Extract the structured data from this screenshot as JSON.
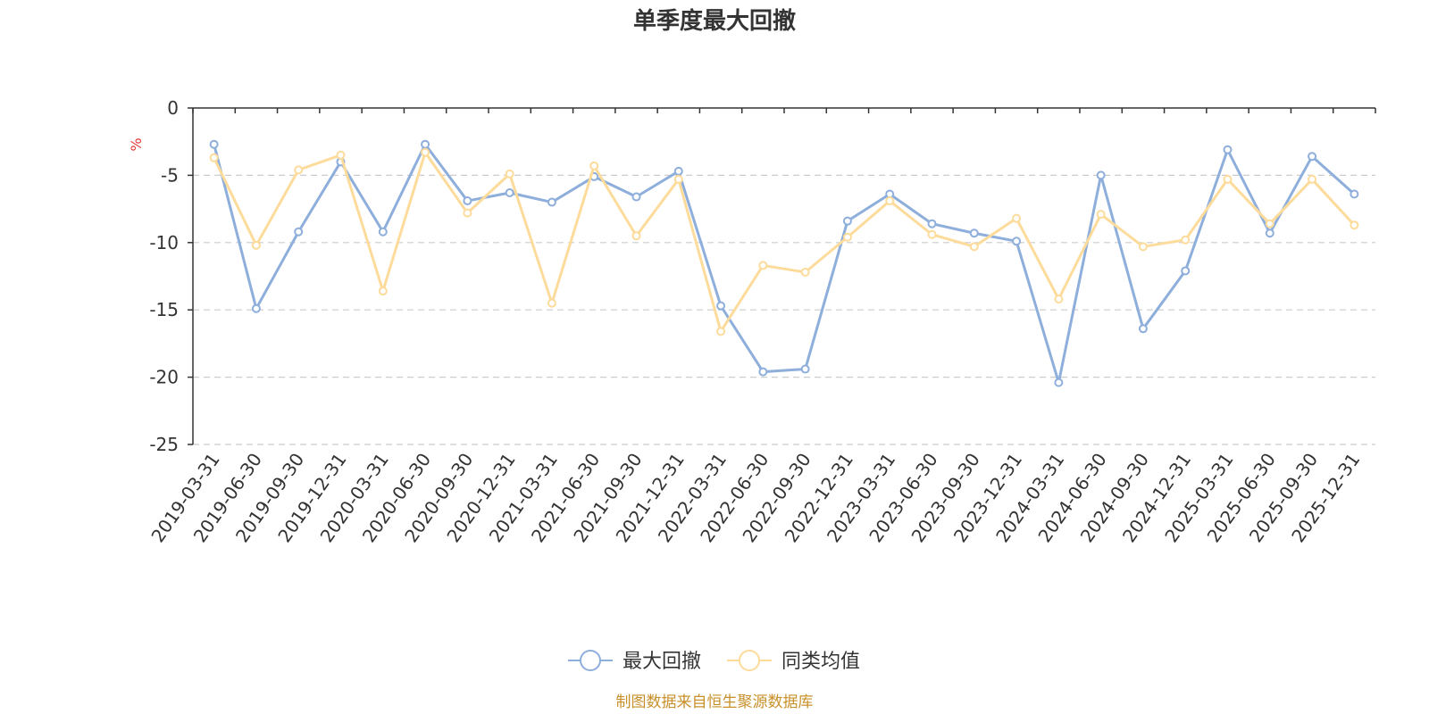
{
  "colors": {
    "series1": "#8eaedb",
    "series2": "#fcdb9b",
    "unit": "#e53935",
    "source": "#c8902a",
    "grid": "#cccccc",
    "axis": "#333333"
  },
  "chart_data": {
    "type": "line",
    "title": "单季度最大回撤",
    "ylabel": "%",
    "ylim": [
      -25,
      0
    ],
    "yticks": [
      0,
      -5,
      -10,
      -15,
      -20,
      -25
    ],
    "grid": "horizontal-dashed",
    "legend_position": "bottom",
    "x": [
      "2019-03-31",
      "2019-06-30",
      "2019-09-30",
      "2019-12-31",
      "2020-03-31",
      "2020-06-30",
      "2020-09-30",
      "2020-12-31",
      "2021-03-31",
      "2021-06-30",
      "2021-09-30",
      "2021-12-31",
      "2022-03-31",
      "2022-06-30",
      "2022-09-30",
      "2022-12-31",
      "2023-03-31",
      "2023-06-30",
      "2023-09-30",
      "2023-12-31",
      "2024-03-31",
      "2024-06-30",
      "2024-09-30",
      "2024-12-31",
      "2025-03-31",
      "2025-06-30",
      "2025-09-30",
      "2025-12-31"
    ],
    "series": [
      {
        "name": "最大回撤",
        "color": "#8eaedb",
        "values": [
          -2.7,
          -14.9,
          -9.2,
          -4.0,
          -9.2,
          -2.7,
          -6.9,
          -6.3,
          -7.0,
          -5.1,
          -6.6,
          -4.7,
          -14.7,
          -19.6,
          -19.4,
          -8.4,
          -6.4,
          -8.6,
          -9.3,
          -9.9,
          -20.4,
          -5.0,
          -16.4,
          -12.1,
          -3.1,
          -9.3,
          -3.6,
          -6.4
        ]
      },
      {
        "name": "同类均值",
        "color": "#fcdb9b",
        "values": [
          -3.7,
          -10.2,
          -4.6,
          -3.5,
          -13.6,
          -3.3,
          -7.8,
          -4.9,
          -14.5,
          -4.3,
          -9.5,
          -5.3,
          -16.6,
          -11.7,
          -12.2,
          -9.6,
          -6.9,
          -9.4,
          -10.3,
          -8.2,
          -14.2,
          -7.9,
          -10.3,
          -9.8,
          -5.3,
          -8.6,
          -5.3,
          -8.7
        ]
      }
    ]
  },
  "source_text": "制图数据来自恒生聚源数据库"
}
